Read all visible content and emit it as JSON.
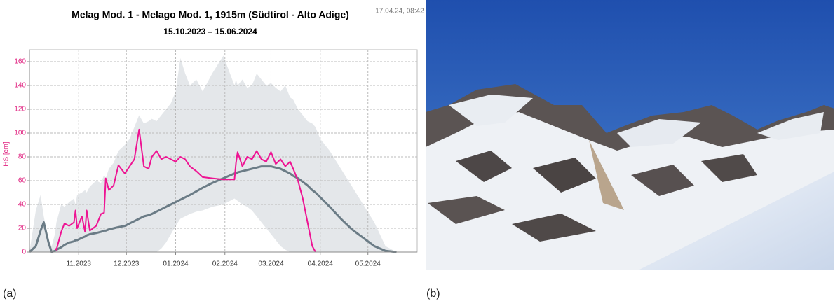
{
  "chart_data": {
    "type": "snow-height",
    "title": "Melag Mod. 1 - Melago  Mod. 1, 1915m (Südtirol - Alto Adige)",
    "subtitle": "15.10.2023 – 15.06.2024",
    "timestamp": "17.04.24, 08:42",
    "y_label": "HS [cm]",
    "panel_labels": [
      "(a)",
      "(b)"
    ],
    "x": [
      "01.10.2023",
      "05.10.2023",
      "08.10.2023",
      "10.10.2023",
      "13.10.2023",
      "15.10.2023",
      "17.10.2023",
      "18.10.2023",
      "21.10.2023",
      "23.10.2023",
      "26.10.2023",
      "29.10.2023",
      "30.10.2023",
      "31.10.2023",
      "03.11.2023",
      "05.11.2023",
      "06.11.2023",
      "08.11.2023",
      "12.11.2023",
      "15.11.2023",
      "17.11.2023",
      "18.11.2023",
      "20.11.2023",
      "23.11.2023",
      "26.11.2023",
      "30.11.2023",
      "03.12.2023",
      "06.12.2023",
      "09.12.2023",
      "12.12.2023",
      "15.12.2023",
      "17.12.2023",
      "20.12.2023",
      "23.12.2023",
      "26.12.2023",
      "29.12.2023",
      "01.01.2024",
      "04.01.2024",
      "07.01.2024",
      "10.01.2024",
      "14.01.2024",
      "18.01.2024",
      "24.01.2024",
      "31.01.2024",
      "07.02.2024",
      "08.02.2024",
      "09.02.2024",
      "12.02.2024",
      "15.02.2024",
      "18.02.2024",
      "21.02.2024",
      "24.02.2024",
      "27.02.2024",
      "01.03.2024",
      "04.03.2024",
      "07.03.2024",
      "10.03.2024",
      "13.03.2024",
      "15.03.2024",
      "18.03.2024",
      "21.03.2024",
      "24.03.2024",
      "27.03.2024",
      "29.03.2024",
      "01.04.2024",
      "07.04.2024",
      "14.04.2024",
      "21.04.2024",
      "28.04.2024",
      "05.05.2024",
      "12.05.2024",
      "19.05.2024"
    ],
    "band": {
      "color": "#dfe3e6",
      "low": [
        0,
        0,
        0,
        0,
        0,
        0,
        0,
        0,
        0,
        0,
        0,
        0,
        0,
        0,
        0,
        0,
        0,
        0,
        0,
        0,
        0,
        0,
        0,
        0,
        0,
        0,
        0,
        0,
        0,
        0,
        0,
        0,
        0,
        3,
        8,
        15,
        22,
        28,
        30,
        32,
        34,
        35,
        38,
        40,
        45,
        44,
        43,
        40,
        38,
        35,
        30,
        25,
        20,
        15,
        10,
        5,
        2,
        0,
        0,
        0,
        0,
        0,
        0,
        0,
        0,
        0,
        0,
        0,
        0,
        0,
        0,
        0
      ],
      "high": [
        0,
        35,
        48,
        30,
        10,
        5,
        15,
        25,
        40,
        38,
        42,
        45,
        40,
        48,
        50,
        52,
        50,
        55,
        60,
        58,
        65,
        62,
        70,
        75,
        85,
        90,
        95,
        105,
        115,
        108,
        110,
        112,
        110,
        115,
        120,
        125,
        135,
        163,
        150,
        140,
        145,
        135,
        150,
        165,
        140,
        145,
        140,
        145,
        138,
        140,
        150,
        145,
        140,
        142,
        138,
        135,
        140,
        130,
        128,
        120,
        115,
        110,
        108,
        105,
        95,
        85,
        70,
        55,
        40,
        25,
        5,
        0
      ]
    },
    "series": [
      {
        "color": "#6b7c86",
        "values": [
          0,
          5,
          18,
          25,
          8,
          0,
          1,
          2,
          4,
          6,
          8,
          9,
          10,
          10,
          12,
          13,
          14,
          15,
          16,
          17,
          18,
          18,
          19,
          20,
          21,
          22,
          24,
          26,
          28,
          30,
          31,
          32,
          34,
          36,
          38,
          40,
          42,
          44,
          46,
          48,
          51,
          54,
          58,
          62,
          66,
          66,
          67,
          68,
          69,
          70,
          71,
          72,
          72,
          72,
          71,
          70,
          68,
          66,
          64,
          62,
          59,
          56,
          52,
          50,
          46,
          38,
          28,
          19,
          12,
          5,
          1,
          0
        ]
      },
      {
        "color": "#ee1493",
        "values": [
          null,
          null,
          null,
          null,
          null,
          null,
          3,
          2,
          17,
          24,
          22,
          25,
          35,
          20,
          30,
          17,
          35,
          18,
          22,
          32,
          33,
          62,
          52,
          56,
          73,
          66,
          72,
          78,
          103,
          72,
          70,
          80,
          85,
          78,
          80,
          78,
          76,
          80,
          78,
          72,
          68,
          63,
          62,
          61,
          61,
          75,
          84,
          72,
          80,
          78,
          85,
          78,
          76,
          84,
          74,
          78,
          72,
          76,
          70,
          60,
          45,
          25,
          5,
          0,
          null,
          null,
          null,
          null,
          null,
          null,
          null,
          null
        ]
      }
    ],
    "xlim": [
      "01.10.2023",
      "01.06.2024"
    ],
    "xticks": [
      {
        "value": "01.11.2023",
        "label": "11.2023"
      },
      {
        "value": "01.12.2023",
        "label": "12.2023"
      },
      {
        "value": "01.01.2024",
        "label": "01.2024"
      },
      {
        "value": "01.02.2024",
        "label": "02.2024"
      },
      {
        "value": "01.03.2024",
        "label": "03.2024"
      },
      {
        "value": "01.04.2024",
        "label": "04.2024"
      },
      {
        "value": "01.05.2024",
        "label": "05.2024"
      }
    ],
    "ylim": [
      0,
      170
    ],
    "yticks": [
      0,
      20,
      40,
      60,
      80,
      100,
      120,
      140,
      160
    ],
    "grid": true
  }
}
